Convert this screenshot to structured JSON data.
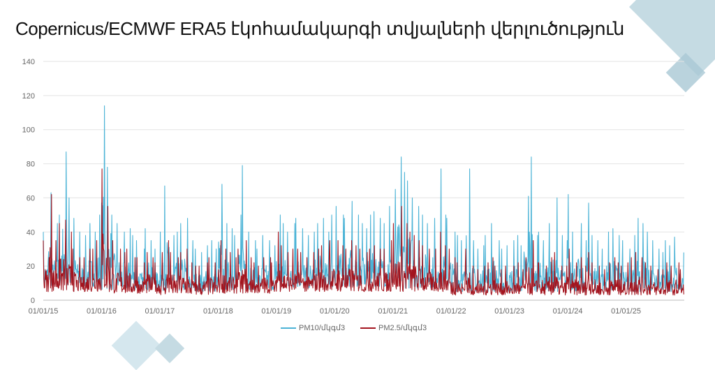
{
  "title": "Copernicus/ECMWF ERA5 էկոհամակարգի տվյալների վերլուծություն",
  "chart_data": {
    "type": "line",
    "title": "Copernicus/ECMWF ERA5 էկոհամակարգի տվյալների վերլուծություն",
    "xlabel": "",
    "ylabel": "",
    "ylim": [
      0,
      140
    ],
    "yticks": [
      0,
      20,
      40,
      60,
      80,
      100,
      120,
      140
    ],
    "xticks": [
      "01/01/15",
      "01/01/16",
      "01/01/17",
      "01/01/18",
      "01/01/19",
      "01/01/20",
      "01/01/21",
      "01/01/22",
      "01/01/23",
      "01/01/24",
      "01/01/25"
    ],
    "x_range": [
      "2015-01",
      "2025-12"
    ],
    "resolution": "monthly max / yearly min",
    "grid": "horizontal",
    "legend_position": "bottom",
    "colors": {
      "pm10": "#4bb3d6",
      "pm25": "#a3141e"
    },
    "series": [
      {
        "name": "PM10/մկգմ3",
        "key": "pm10",
        "monthly_max": [
          40,
          63,
          45,
          50,
          87,
          60,
          48,
          40,
          38,
          45,
          40,
          50,
          114,
          78,
          50,
          45,
          40,
          42,
          38,
          35,
          30,
          42,
          35,
          30,
          40,
          67,
          38,
          40,
          45,
          48,
          35,
          30,
          28,
          32,
          35,
          30,
          68,
          45,
          42,
          38,
          50,
          79,
          40,
          35,
          30,
          38,
          35,
          32,
          50,
          45,
          40,
          45,
          48,
          42,
          38,
          40,
          45,
          48,
          40,
          50,
          55,
          50,
          48,
          58,
          50,
          45,
          42,
          50,
          52,
          48,
          45,
          55,
          65,
          84,
          75,
          70,
          60,
          55,
          50,
          45,
          48,
          77,
          50,
          48,
          40,
          38,
          35,
          77,
          35,
          30,
          32,
          38,
          45,
          35,
          30,
          32,
          35,
          38,
          32,
          61,
          84,
          38,
          40,
          35,
          45,
          60,
          38,
          35,
          62,
          40,
          45,
          35,
          57,
          38,
          35,
          30,
          40,
          42,
          38,
          35,
          30,
          38,
          48,
          45,
          40,
          35,
          30,
          28,
          35,
          32,
          37,
          28
        ],
        "yearly_min": [
          8,
          6,
          5,
          6,
          7,
          8,
          7,
          5,
          5,
          5,
          5
        ]
      },
      {
        "name": "PM2.5/մկգմ3",
        "key": "pm25",
        "monthly_max": [
          35,
          62,
          35,
          45,
          47,
          40,
          30,
          25,
          25,
          30,
          30,
          35,
          77,
          55,
          35,
          30,
          28,
          30,
          25,
          25,
          22,
          28,
          25,
          22,
          28,
          35,
          28,
          25,
          28,
          30,
          22,
          20,
          20,
          22,
          25,
          22,
          35,
          30,
          28,
          25,
          30,
          35,
          25,
          22,
          20,
          25,
          25,
          22,
          40,
          32,
          28,
          30,
          30,
          28,
          25,
          28,
          30,
          32,
          28,
          35,
          35,
          32,
          30,
          35,
          32,
          30,
          28,
          30,
          32,
          30,
          30,
          35,
          45,
          55,
          45,
          40,
          38,
          35,
          32,
          30,
          30,
          40,
          32,
          30,
          25,
          22,
          20,
          30,
          20,
          18,
          20,
          22,
          25,
          20,
          18,
          20,
          20,
          22,
          18,
          25,
          35,
          22,
          22,
          20,
          25,
          28,
          20,
          20,
          30,
          22,
          25,
          20,
          28,
          22,
          20,
          18,
          22,
          25,
          22,
          20,
          22,
          25,
          28,
          25,
          22,
          20,
          18,
          18,
          22,
          20,
          22,
          18
        ],
        "yearly_min": [
          5,
          4,
          3,
          4,
          5,
          5,
          5,
          3,
          3,
          3,
          3
        ]
      }
    ]
  }
}
